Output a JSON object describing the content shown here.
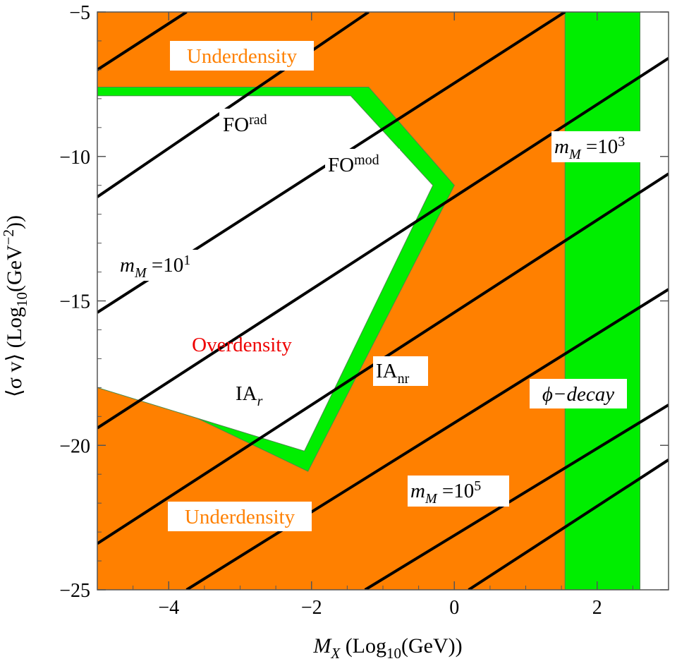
{
  "chart_data": {
    "type": "area",
    "xlabel": {
      "var": "M",
      "sub": "X",
      "rest": "  (Log",
      "sub2": "10",
      "end": "(GeV))"
    },
    "ylabel": {
      "open": "⟨σ v⟩ (Log",
      "sub": "10",
      "mid": "(GeV",
      "sup": "−2",
      "end": "))"
    },
    "xlim": [
      -5,
      3
    ],
    "ylim": [
      -25,
      -5
    ],
    "x_ticks": [
      -4,
      -2,
      0,
      2
    ],
    "x_tick_labels": [
      "−4",
      "−2",
      "0",
      "2"
    ],
    "y_ticks": [
      -5,
      -10,
      -15,
      -20,
      -25
    ],
    "y_tick_labels": [
      "−5",
      "−10",
      "−15",
      "−20",
      "−25"
    ],
    "colors": {
      "underdensity": "#ff8000",
      "boundary": "#00ee00",
      "overdensity": "#ffffff",
      "contour": "#000000",
      "overdensity_label": "#ee0000"
    },
    "regions": {
      "overdensity_outer": [
        [
          -5,
          -7.6
        ],
        [
          -1.2,
          -7.6
        ],
        [
          0.0,
          -11.0
        ],
        [
          -2.05,
          -20.9
        ],
        [
          -5,
          -17.4
        ]
      ],
      "overdensity_inner": [
        [
          -5,
          -7.9
        ],
        [
          -1.45,
          -7.9
        ],
        [
          -0.3,
          -11.0
        ],
        [
          -2.1,
          -20.2
        ],
        [
          -5,
          -18.0
        ]
      ],
      "decay_band": [
        1.55,
        2.6
      ]
    },
    "contour_lines": [
      {
        "x": [
          -5,
          -3.75
        ],
        "y": [
          -7.0,
          -5.0
        ]
      },
      {
        "x": [
          -5,
          -1.2
        ],
        "y": [
          -11.4,
          -5.0
        ]
      },
      {
        "x": [
          -5,
          1.55
        ],
        "y": [
          -15.4,
          -5.0
        ]
      },
      {
        "x": [
          -5,
          3
        ],
        "y": [
          -19.4,
          -6.6
        ]
      },
      {
        "x": [
          -5,
          3
        ],
        "y": [
          -23.4,
          -10.6
        ]
      },
      {
        "x": [
          -3.75,
          3
        ],
        "y": [
          -25,
          -14.6
        ]
      },
      {
        "x": [
          -1.25,
          3
        ],
        "y": [
          -25,
          -18.6
        ]
      },
      {
        "x": [
          0.2,
          3
        ],
        "y": [
          -25,
          -20.5
        ]
      }
    ],
    "labels": {
      "underdensity_top": "Underdensity",
      "underdensity_bottom": "Underdensity",
      "overdensity": "Overdensity",
      "fo_rad": {
        "base": "FO",
        "sup": "rad"
      },
      "fo_mod": {
        "base": "FO",
        "sup": "mod"
      },
      "ia_r": {
        "base": "IA",
        "sub": "r"
      },
      "ia_nr": {
        "base": "IA",
        "sub": "nr"
      },
      "decay": "ϕ−decay",
      "m1": {
        "var": "m",
        "sub": "M",
        "eq": " =10",
        "sup": "1"
      },
      "m3": {
        "var": "m",
        "sub": "M",
        "eq": " =10",
        "sup": "3"
      },
      "m5": {
        "var": "m",
        "sub": "M",
        "eq": " =10",
        "sup": "5"
      }
    }
  }
}
